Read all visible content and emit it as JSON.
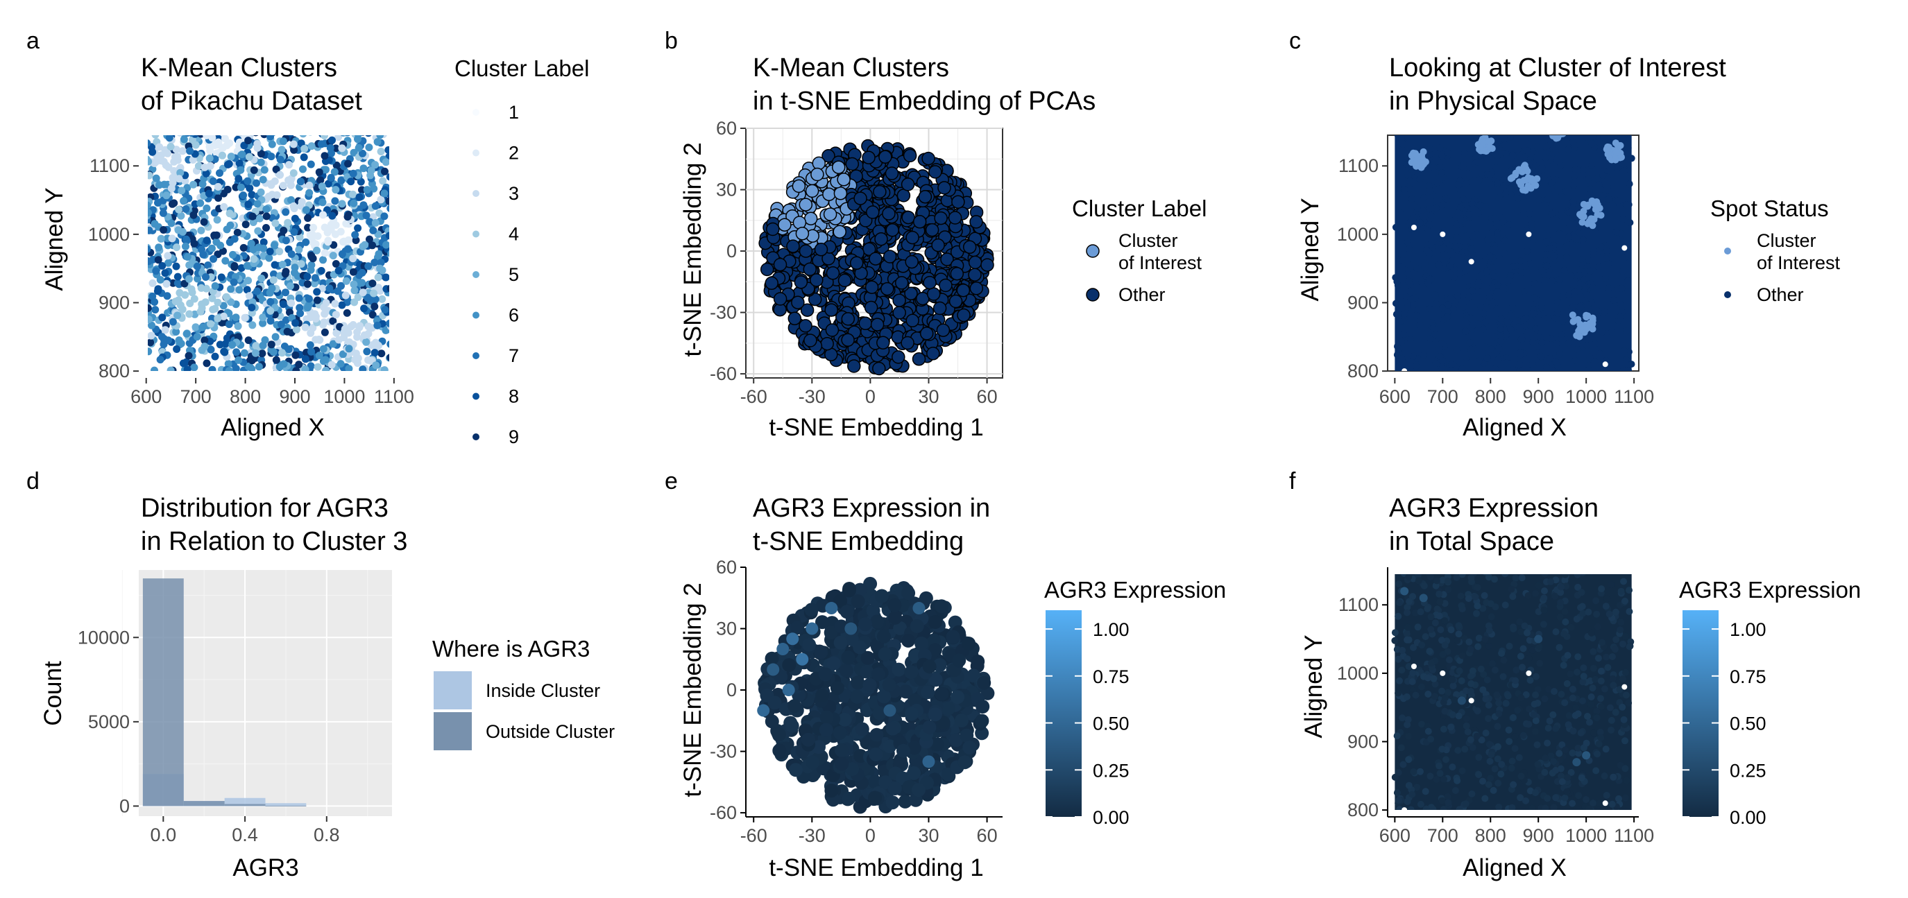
{
  "figure": {
    "colors": {
      "clusters": [
        "#f7fbff",
        "#deebf7",
        "#c6dbef",
        "#9ecae1",
        "#6baed6",
        "#4292c6",
        "#2171b5",
        "#08519c",
        "#08306b"
      ],
      "cluster_of_interest": "#6b9bd6",
      "other": "#08306b",
      "inside_cluster": "#adc6e3",
      "outside_cluster": "#7891ad",
      "gradient_low": "#132b43",
      "gradient_high": "#56b1f7",
      "panel_grey": "#ebebeb"
    }
  },
  "chart_data": [
    {
      "panel_tag": "a",
      "type": "scatter",
      "title": "K-Mean Clusters\nof Pikachu Dataset",
      "xlabel": "Aligned X",
      "ylabel": "Aligned Y",
      "xlim": [
        585,
        1110
      ],
      "ylim": [
        790,
        1155
      ],
      "xticks": [
        600,
        700,
        800,
        900,
        1000,
        1100
      ],
      "xtick_labels": [
        "600",
        "700",
        "800",
        "900",
        "1000",
        "1100"
      ],
      "yticks": [
        800,
        900,
        1000,
        1100
      ],
      "ytick_labels": [
        "800",
        "900",
        "1000",
        "1100"
      ],
      "legend_title": "Cluster Label",
      "legend_entries": [
        "1",
        "2",
        "3",
        "4",
        "5",
        "6",
        "7",
        "8",
        "9"
      ],
      "legend_placement": "right",
      "grid": false,
      "data_extent": {
        "x": [
          600,
          1095
        ],
        "y": [
          800,
          1150
        ]
      },
      "light_regions": [
        {
          "x": 650,
          "y": 1110,
          "label": 3
        },
        {
          "x": 760,
          "y": 1140,
          "label": 2
        },
        {
          "x": 880,
          "y": 1060,
          "label": 3
        },
        {
          "x": 970,
          "y": 1000,
          "label": 2
        },
        {
          "x": 960,
          "y": 870,
          "label": 3
        },
        {
          "x": 700,
          "y": 900,
          "label": 4
        },
        {
          "x": 1030,
          "y": 840,
          "label": 3
        }
      ]
    },
    {
      "panel_tag": "b",
      "type": "scatter",
      "title": "K-Mean Clusters\nin t-SNE Embedding of PCAs",
      "xlabel": "t-SNE Embedding 1",
      "ylabel": "t-SNE Embedding 2",
      "xlim": [
        -64,
        68
      ],
      "ylim": [
        -62,
        60
      ],
      "xticks": [
        -60,
        -30,
        0,
        30,
        60
      ],
      "xtick_labels": [
        "-60",
        "-30",
        "0",
        "30",
        "60"
      ],
      "yticks": [
        -60,
        -30,
        0,
        30,
        60
      ],
      "ytick_labels": [
        "-60",
        "-30",
        "0",
        "30",
        "60"
      ],
      "legend_title": "Cluster Label",
      "legend_entries": [
        "Cluster\nof Interest",
        "Other"
      ],
      "legend_placement": "right",
      "grid": true,
      "cloud": {
        "center": [
          3,
          -3
        ],
        "radius": 55
      },
      "cluster_of_interest_region": {
        "center": [
          -30,
          25
        ],
        "radius": 22
      }
    },
    {
      "panel_tag": "c",
      "type": "scatter",
      "title": "Looking at Cluster of Interest\nin Physical Space",
      "xlabel": "Aligned X",
      "ylabel": "Aligned Y",
      "xlim": [
        585,
        1110
      ],
      "ylim": [
        790,
        1155
      ],
      "xticks": [
        600,
        700,
        800,
        900,
        1000,
        1100
      ],
      "xtick_labels": [
        "600",
        "700",
        "800",
        "900",
        "1000",
        "1100"
      ],
      "yticks": [
        800,
        900,
        1000,
        1100
      ],
      "ytick_labels": [
        "800",
        "900",
        "1000",
        "1100"
      ],
      "legend_title": "Spot Status",
      "legend_entries": [
        "Cluster\nof Interest",
        "Other"
      ],
      "legend_placement": "right",
      "grid": false,
      "interest_patches": [
        {
          "x": 650,
          "y": 1110,
          "r": 14
        },
        {
          "x": 790,
          "y": 1130,
          "r": 12
        },
        {
          "x": 870,
          "y": 1080,
          "r": 22
        },
        {
          "x": 1010,
          "y": 1030,
          "r": 20
        },
        {
          "x": 1060,
          "y": 1120,
          "r": 14
        },
        {
          "x": 990,
          "y": 870,
          "r": 20
        },
        {
          "x": 940,
          "y": 1150,
          "r": 10
        }
      ]
    },
    {
      "panel_tag": "d",
      "type": "bar",
      "title": "Distribution for AGR3\nin Relation to Cluster 3",
      "xlabel": "AGR3",
      "ylabel": "Count",
      "xlim": [
        -0.12,
        1.12
      ],
      "ylim": [
        -600,
        14000
      ],
      "xticks": [
        0.0,
        0.4,
        0.8
      ],
      "xtick_labels": [
        "0.0",
        "0.4",
        "0.8"
      ],
      "yticks": [
        0,
        5000,
        10000
      ],
      "ytick_labels": [
        "0",
        "5000",
        "10000"
      ],
      "legend_title": "Where is AGR3",
      "legend_entries": [
        "Inside Cluster",
        "Outside Cluster"
      ],
      "legend_placement": "right",
      "grid": true,
      "bin_edges": [
        -0.1,
        0.1,
        0.3,
        0.5,
        0.7,
        0.9,
        1.1
      ],
      "series": [
        {
          "name": "Inside Cluster",
          "values": [
            1900,
            300,
            480,
            170,
            0,
            0
          ]
        },
        {
          "name": "Outside Cluster",
          "values": [
            13500,
            300,
            120,
            20,
            0,
            0
          ]
        }
      ]
    },
    {
      "panel_tag": "e",
      "type": "scatter",
      "title": "AGR3 Expression in\nt-SNE Embedding",
      "xlabel": "t-SNE Embedding 1",
      "ylabel": "t-SNE Embedding 2",
      "xlim": [
        -64,
        68
      ],
      "ylim": [
        -62,
        60
      ],
      "xticks": [
        -60,
        -30,
        0,
        30,
        60
      ],
      "xtick_labels": [
        "-60",
        "-30",
        "0",
        "30",
        "60"
      ],
      "yticks": [
        -60,
        -30,
        0,
        30,
        60
      ],
      "ytick_labels": [
        "-60",
        "-30",
        "0",
        "30",
        "60"
      ],
      "legend_title": "AGR3 Expression",
      "colorbar_range": [
        0,
        1.1
      ],
      "colorbar_ticks": [
        0,
        0.25,
        0.5,
        0.75,
        1.0
      ],
      "colorbar_tick_labels": [
        "0.00",
        "0.25",
        "0.50",
        "0.75",
        "1.00"
      ],
      "legend_placement": "right",
      "grid": false,
      "cloud": {
        "center": [
          3,
          -3
        ],
        "radius": 55
      },
      "bright_points": [
        {
          "x": -40,
          "y": 25,
          "v": 0.55
        },
        {
          "x": -45,
          "y": 20,
          "v": 0.45
        },
        {
          "x": -35,
          "y": 15,
          "v": 0.6
        },
        {
          "x": -50,
          "y": 10,
          "v": 0.4
        },
        {
          "x": -30,
          "y": 30,
          "v": 0.5
        },
        {
          "x": -55,
          "y": -10,
          "v": 0.5
        },
        {
          "x": -20,
          "y": 40,
          "v": 0.45
        },
        {
          "x": 25,
          "y": 40,
          "v": 0.4
        },
        {
          "x": -42,
          "y": 0,
          "v": 0.5
        },
        {
          "x": 30,
          "y": -35,
          "v": 0.45
        },
        {
          "x": -10,
          "y": 30,
          "v": 0.35
        },
        {
          "x": 10,
          "y": -10,
          "v": 0.35
        }
      ]
    },
    {
      "panel_tag": "f",
      "type": "scatter",
      "title": "AGR3 Expression\nin Total Space",
      "xlabel": "Aligned X",
      "ylabel": "Aligned Y",
      "xlim": [
        585,
        1110
      ],
      "ylim": [
        790,
        1155
      ],
      "xticks": [
        600,
        700,
        800,
        900,
        1000,
        1100
      ],
      "xtick_labels": [
        "600",
        "700",
        "800",
        "900",
        "1000",
        "1100"
      ],
      "yticks": [
        800,
        900,
        1000,
        1100
      ],
      "ytick_labels": [
        "800",
        "900",
        "1000",
        "1100"
      ],
      "legend_title": "AGR3 Expression",
      "colorbar_range": [
        0,
        1.1
      ],
      "colorbar_ticks": [
        0,
        0.25,
        0.5,
        0.75,
        1.0
      ],
      "colorbar_tick_labels": [
        "0.00",
        "0.25",
        "0.50",
        "0.75",
        "1.00"
      ],
      "legend_placement": "right",
      "grid": false,
      "bright_points": [
        {
          "x": 620,
          "y": 1120,
          "v": 0.35
        },
        {
          "x": 660,
          "y": 1110,
          "v": 0.3
        },
        {
          "x": 1000,
          "y": 880,
          "v": 0.35
        },
        {
          "x": 980,
          "y": 870,
          "v": 0.3
        },
        {
          "x": 740,
          "y": 960,
          "v": 0.25
        },
        {
          "x": 900,
          "y": 1050,
          "v": 0.25
        }
      ]
    }
  ]
}
